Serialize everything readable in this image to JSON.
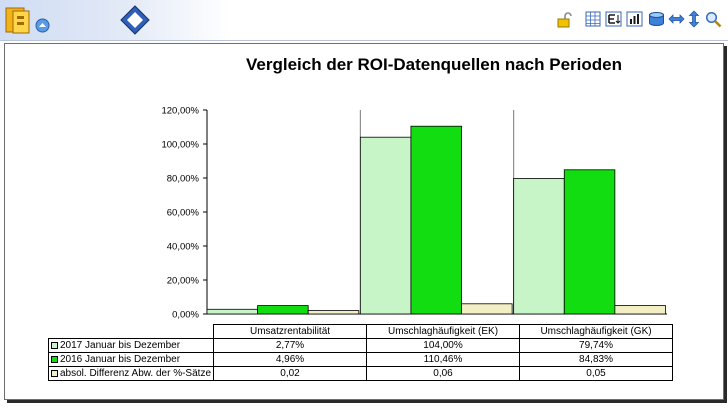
{
  "toolbar": {
    "left_icons": [
      "folder-icon",
      "up-icon",
      "diamond-icon"
    ],
    "right_icons": [
      "lock-icon",
      "table-icon",
      "text-export-icon",
      "chart-settings-icon",
      "database-icon",
      "swap-horizontal-icon",
      "swap-vertical-icon",
      "zoom-icon"
    ]
  },
  "chart_data": {
    "type": "bar",
    "title": "Vergleich der ROI-Datenquellen nach Perioden",
    "categories": [
      "Umsatzrentabilität",
      "Umschlaghäufigkeit (EK)",
      "Umschlaghäufigkeit (GK)"
    ],
    "series": [
      {
        "name": "2017 Januar bis Dezember",
        "values": [
          2.77,
          104.0,
          79.74
        ],
        "labels": [
          "2,77%",
          "104,00%",
          "79,74%"
        ],
        "color": "#c8f5c8"
      },
      {
        "name": "2016 Januar bis Dezember",
        "values": [
          4.96,
          110.46,
          84.83
        ],
        "labels": [
          "4,96%",
          "110,46%",
          "84,83%"
        ],
        "color": "#11dd11"
      },
      {
        "name": "absol. Differenz Abw. der %-Sätze",
        "values": [
          0.02,
          0.06,
          0.05
        ],
        "labels": [
          "0,02",
          "0,06",
          "0,05"
        ],
        "color": "#f3efc4",
        "scale_factor": 100
      }
    ],
    "yticks": [
      "0,00%",
      "20,00%",
      "40,00%",
      "60,00%",
      "80,00%",
      "100,00%",
      "120,00%"
    ],
    "ylim": [
      0,
      120
    ],
    "grid": false,
    "legend": "table-below"
  }
}
